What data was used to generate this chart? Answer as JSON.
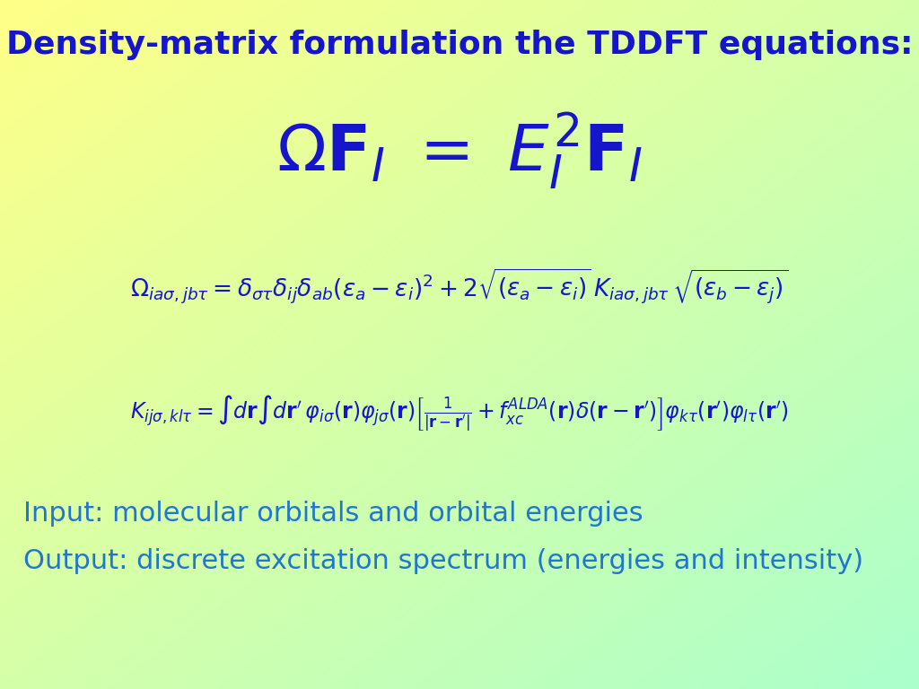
{
  "title": "Density-matrix formulation the TDDFT equations:",
  "title_color": "#1515CC",
  "title_fontsize": 26,
  "eq_color": "#1515CC",
  "text_color": "#2277CC",
  "input_text": "Input: molecular orbitals and orbital energies",
  "output_text": "Output: discrete excitation spectrum (energies and intensity)",
  "figsize": [
    10.24,
    7.68
  ],
  "dpi": 100,
  "bg_yellow": [
    1.0,
    1.0,
    0.53
  ],
  "bg_green": [
    0.67,
    1.0,
    0.8
  ]
}
